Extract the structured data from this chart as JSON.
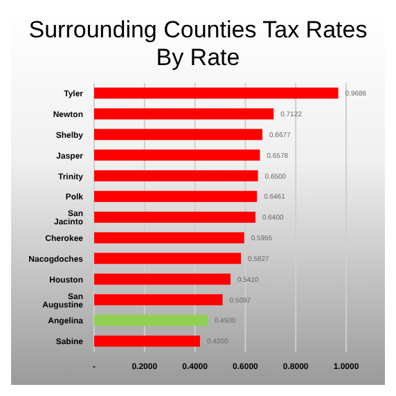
{
  "chart_data": {
    "type": "bar",
    "orientation": "horizontal",
    "title": "Surrounding Counties Tax Rates",
    "subtitle": "By Rate",
    "categories": [
      "Tyler",
      "Newton",
      "Shelby",
      "Jasper",
      "Trinity",
      "Polk",
      "San Jacinto",
      "Cherokee",
      "Nacogdoches",
      "Houston",
      "San Augustine",
      "Angelina",
      "Sabine"
    ],
    "values": [
      0.9686,
      0.7122,
      0.6677,
      0.6578,
      0.65,
      0.6461,
      0.64,
      0.5955,
      0.5827,
      0.541,
      0.5097,
      0.45,
      0.42
    ],
    "value_labels": [
      "0.9686",
      "0.7122",
      "0.6677",
      "0.6578",
      "0.6500",
      "0.6461",
      "0.6400",
      "0.5955",
      "0.5827",
      "0.5410",
      "0.5097",
      "0.4500",
      "0.4200"
    ],
    "colors": [
      "#ff0000",
      "#ff0000",
      "#ff0000",
      "#ff0000",
      "#ff0000",
      "#ff0000",
      "#ff0000",
      "#ff0000",
      "#ff0000",
      "#ff0000",
      "#ff0000",
      "#92d050",
      "#ff0000"
    ],
    "xlim": [
      0,
      1
    ],
    "xticks": [
      {
        "value": 0,
        "label": "-"
      },
      {
        "value": 0.2,
        "label": "0.2000"
      },
      {
        "value": 0.4,
        "label": "0.4000"
      },
      {
        "value": 0.6,
        "label": "0.6000"
      },
      {
        "value": 0.8,
        "label": "0.8000"
      },
      {
        "value": 1,
        "label": "1.0000"
      }
    ],
    "grid": "x"
  }
}
